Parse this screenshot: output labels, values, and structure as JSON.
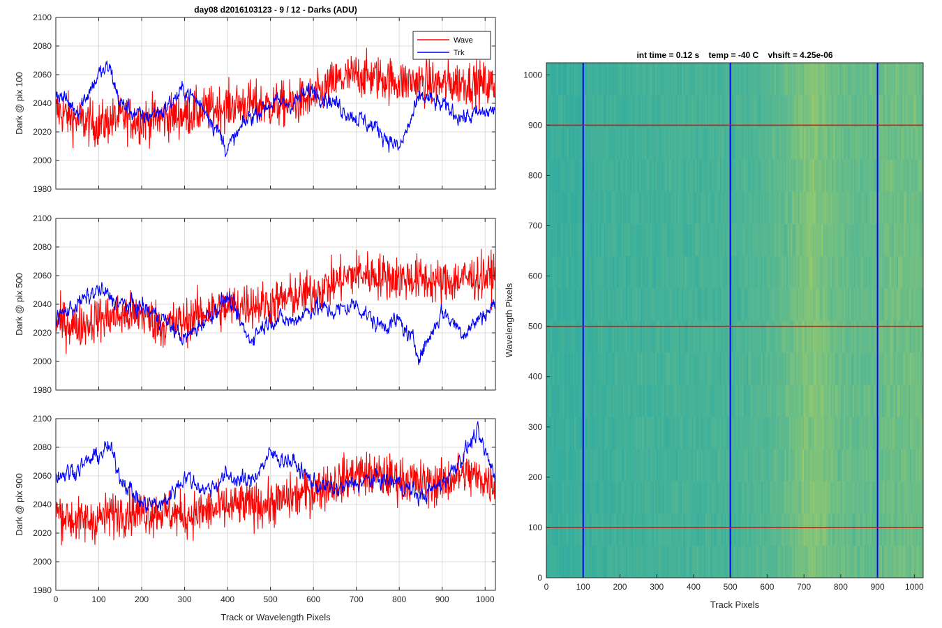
{
  "figure_title": "day08 d2016103123 - 9 / 12 - Darks (ADU)",
  "colors": {
    "wave": "#ff0000",
    "trk": "#0000ff",
    "axis": "#262626",
    "grid": "#dcdcdc"
  },
  "chart_data": [
    {
      "type": "line",
      "title": "day08 d2016103123 - 9 / 12 - Darks (ADU)",
      "xlabel": "",
      "ylabel": "Dark @ pix 100",
      "xlim": [
        0,
        1024
      ],
      "ylim": [
        1980,
        2100
      ],
      "xticks": [
        0,
        100,
        200,
        300,
        400,
        500,
        600,
        700,
        800,
        900,
        1000
      ],
      "xticklabels": [
        "",
        "",
        "",
        "",
        "",
        "",
        "",
        "",
        "",
        "",
        ""
      ],
      "yticks": [
        1980,
        2000,
        2020,
        2040,
        2060,
        2080,
        2100
      ],
      "yticklabels": [
        "1980",
        "2000",
        "2020",
        "2040",
        "2060",
        "2080",
        "2100"
      ],
      "grid": true,
      "legend": {
        "position": "top-right",
        "entries": [
          "Wave",
          "Trk"
        ]
      },
      "series": [
        {
          "name": "Wave",
          "color": "#ff0000",
          "x": [
            0,
            50,
            100,
            150,
            200,
            250,
            300,
            350,
            400,
            450,
            500,
            550,
            600,
            650,
            700,
            750,
            800,
            850,
            900,
            950,
            1023
          ],
          "y": [
            2035,
            2028,
            2025,
            2030,
            2028,
            2030,
            2032,
            2035,
            2038,
            2040,
            2038,
            2040,
            2043,
            2055,
            2060,
            2058,
            2055,
            2055,
            2053,
            2055,
            2052
          ]
        },
        {
          "name": "Trk",
          "color": "#0000ff",
          "x": [
            0,
            50,
            100,
            125,
            150,
            200,
            250,
            300,
            350,
            400,
            450,
            500,
            550,
            600,
            650,
            700,
            750,
            800,
            850,
            900,
            950,
            1023
          ],
          "y": [
            2048,
            2035,
            2060,
            2065,
            2040,
            2030,
            2035,
            2050,
            2035,
            2008,
            2030,
            2040,
            2040,
            2050,
            2040,
            2030,
            2022,
            2008,
            2045,
            2038,
            2030,
            2035
          ]
        }
      ]
    },
    {
      "type": "line",
      "xlabel": "",
      "ylabel": "Dark @ pix 500",
      "xlim": [
        0,
        1024
      ],
      "ylim": [
        1980,
        2100
      ],
      "xticks": [
        0,
        100,
        200,
        300,
        400,
        500,
        600,
        700,
        800,
        900,
        1000
      ],
      "xticklabels": [
        "",
        "",
        "",
        "",
        "",
        "",
        "",
        "",
        "",
        "",
        ""
      ],
      "yticks": [
        1980,
        2000,
        2020,
        2040,
        2060,
        2080,
        2100
      ],
      "yticklabels": [
        "1980",
        "2000",
        "2020",
        "2040",
        "2060",
        "2080",
        "2100"
      ],
      "grid": true,
      "series": [
        {
          "name": "Wave",
          "color": "#ff0000",
          "x": [
            0,
            50,
            100,
            150,
            200,
            250,
            300,
            350,
            400,
            450,
            500,
            550,
            600,
            650,
            700,
            750,
            800,
            850,
            900,
            950,
            1023
          ],
          "y": [
            2028,
            2025,
            2030,
            2032,
            2033,
            2025,
            2028,
            2035,
            2038,
            2040,
            2040,
            2045,
            2048,
            2055,
            2062,
            2060,
            2058,
            2058,
            2055,
            2058,
            2060
          ]
        },
        {
          "name": "Trk",
          "color": "#0000ff",
          "x": [
            0,
            50,
            100,
            150,
            200,
            250,
            300,
            350,
            400,
            450,
            500,
            550,
            600,
            650,
            700,
            750,
            800,
            850,
            900,
            950,
            1023
          ],
          "y": [
            2030,
            2040,
            2050,
            2040,
            2038,
            2030,
            2015,
            2030,
            2045,
            2015,
            2030,
            2028,
            2038,
            2035,
            2040,
            2025,
            2028,
            2005,
            2035,
            2020,
            2040
          ]
        }
      ]
    },
    {
      "type": "line",
      "xlabel": "Track or Wavelength Pixels",
      "ylabel": "Dark @ pix 900",
      "xlim": [
        0,
        1024
      ],
      "ylim": [
        1980,
        2100
      ],
      "xticks": [
        0,
        100,
        200,
        300,
        400,
        500,
        600,
        700,
        800,
        900,
        1000
      ],
      "xticklabels": [
        "0",
        "100",
        "200",
        "300",
        "400",
        "500",
        "600",
        "700",
        "800",
        "900",
        "1000"
      ],
      "yticks": [
        1980,
        2000,
        2020,
        2040,
        2060,
        2080,
        2100
      ],
      "yticklabels": [
        "1980",
        "2000",
        "2020",
        "2040",
        "2060",
        "2080",
        "2100"
      ],
      "grid": true,
      "series": [
        {
          "name": "Wave",
          "color": "#ff0000",
          "x": [
            0,
            50,
            100,
            150,
            200,
            250,
            300,
            350,
            400,
            450,
            500,
            550,
            600,
            650,
            700,
            750,
            800,
            850,
            900,
            950,
            1023
          ],
          "y": [
            2035,
            2028,
            2030,
            2035,
            2035,
            2035,
            2032,
            2035,
            2038,
            2040,
            2040,
            2045,
            2050,
            2055,
            2062,
            2060,
            2058,
            2055,
            2055,
            2062,
            2055
          ]
        },
        {
          "name": "Trk",
          "color": "#0000ff",
          "x": [
            0,
            50,
            100,
            125,
            150,
            200,
            250,
            300,
            350,
            400,
            450,
            500,
            550,
            600,
            650,
            700,
            750,
            800,
            850,
            900,
            950,
            980,
            1023
          ],
          "y": [
            2060,
            2065,
            2075,
            2080,
            2060,
            2040,
            2040,
            2060,
            2050,
            2060,
            2055,
            2075,
            2070,
            2055,
            2050,
            2055,
            2058,
            2055,
            2045,
            2055,
            2075,
            2090,
            2060
          ]
        }
      ]
    },
    {
      "type": "heatmap",
      "title": "int time = 0.12 s    temp = -40 C    vhsift = 4.25e-06",
      "xlabel": "Track Pixels",
      "ylabel": "Wavelength Pixels",
      "xlim": [
        0,
        1024
      ],
      "ylim": [
        0,
        1024
      ],
      "xticks": [
        0,
        100,
        200,
        300,
        400,
        500,
        600,
        700,
        800,
        900,
        1000
      ],
      "xticklabels": [
        "0",
        "100",
        "200",
        "300",
        "400",
        "500",
        "600",
        "700",
        "800",
        "900",
        "1000"
      ],
      "yticks": [
        0,
        100,
        200,
        300,
        400,
        500,
        600,
        700,
        800,
        900,
        1000
      ],
      "yticklabels": [
        "0",
        "100",
        "200",
        "300",
        "400",
        "500",
        "600",
        "700",
        "800",
        "900",
        "1000"
      ],
      "colormap": [
        "#2da4a8",
        "#34ad9e",
        "#5cb98f",
        "#9aca6a",
        "#d6bd3b"
      ],
      "column_profile": {
        "x": [
          0,
          50,
          100,
          200,
          300,
          400,
          500,
          600,
          650,
          700,
          725,
          750,
          800,
          850,
          900,
          950,
          1024
        ],
        "level": [
          0.3,
          0.28,
          0.3,
          0.33,
          0.35,
          0.36,
          0.38,
          0.45,
          0.52,
          0.62,
          0.66,
          0.62,
          0.55,
          0.52,
          0.55,
          0.58,
          0.56
        ]
      },
      "vertical_lines": {
        "x": [
          100,
          500,
          900
        ],
        "color": "#0000ff"
      },
      "horizontal_lines": {
        "y": [
          100,
          500,
          900
        ],
        "color": "#ff0000"
      }
    }
  ]
}
